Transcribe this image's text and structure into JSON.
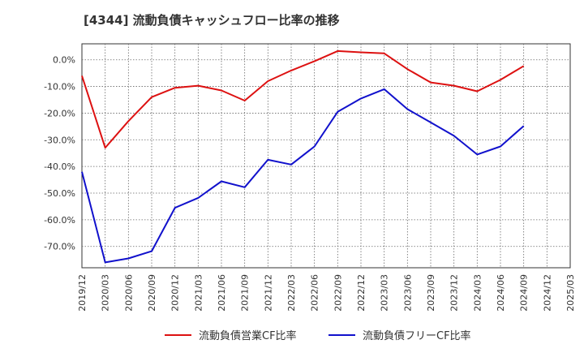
{
  "chart_data": {
    "type": "line",
    "title": "[4344]  流動負債キャッシュフロー比率の推移",
    "xlabel": "",
    "ylabel": "",
    "ylim": [
      -78,
      6
    ],
    "yticks": [
      0,
      -10,
      -20,
      -30,
      -40,
      -50,
      -60,
      -70
    ],
    "ytick_labels": [
      "0.0%",
      "-10.0%",
      "-20.0%",
      "-30.0%",
      "-40.0%",
      "-50.0%",
      "-60.0%",
      "-70.0%"
    ],
    "categories": [
      "2019/12",
      "2020/03",
      "2020/06",
      "2020/09",
      "2020/12",
      "2021/03",
      "2021/06",
      "2021/09",
      "2021/12",
      "2022/03",
      "2022/06",
      "2022/09",
      "2022/12",
      "2023/03",
      "2023/06",
      "2023/09",
      "2023/12",
      "2024/03",
      "2024/06",
      "2024/09",
      "2024/12",
      "2025/03"
    ],
    "series": [
      {
        "name": "流動負債営業CF比率",
        "color": "#dd1111",
        "values": [
          -6.0,
          -33.0,
          -23.0,
          -14.0,
          -10.5,
          -9.7,
          -11.5,
          -15.3,
          -8.0,
          -4.0,
          -0.5,
          3.3,
          2.8,
          2.4,
          -3.5,
          -8.5,
          -9.7,
          -11.8,
          -7.5,
          -2.3,
          null,
          null
        ]
      },
      {
        "name": "流動負債フリーCF比率",
        "color": "#1111cc",
        "values": [
          -42.0,
          -76.0,
          -74.5,
          -71.8,
          -55.5,
          -51.8,
          -45.6,
          -47.8,
          -37.5,
          -39.3,
          -32.5,
          -19.5,
          -14.5,
          -11.0,
          -18.5,
          -23.5,
          -28.5,
          -35.5,
          -32.5,
          -24.8,
          null,
          null
        ]
      }
    ],
    "grid": true,
    "legend_position": "bottom"
  }
}
